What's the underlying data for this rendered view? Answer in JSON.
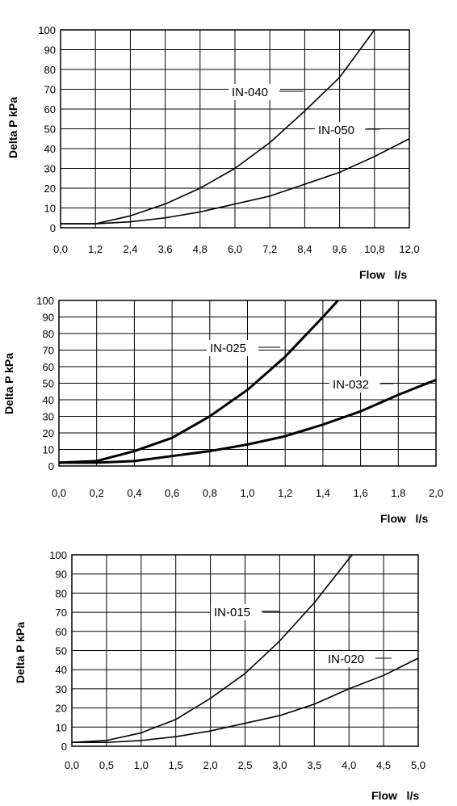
{
  "chart_data": [
    {
      "type": "line",
      "xlabel": "Flow   l/s",
      "ylabel": "Delta P  kPa",
      "xlim": [
        0,
        12
      ],
      "ylim": [
        0,
        100
      ],
      "x_ticks": [
        "0,0",
        "1,2",
        "2,4",
        "3,6",
        "4,8",
        "6,0",
        "7,2",
        "8,4",
        "9,6",
        "10,8",
        "12,0"
      ],
      "y_ticks": [
        "0",
        "10",
        "20",
        "30",
        "40",
        "50",
        "60",
        "70",
        "80",
        "90",
        "100"
      ],
      "grid": true,
      "series": [
        {
          "name": "IN-040",
          "x": [
            0,
            1.2,
            2.4,
            3.6,
            4.8,
            6.0,
            7.2,
            8.4,
            9.6,
            10.8
          ],
          "y": [
            2,
            2,
            6,
            12,
            20,
            30,
            43,
            59,
            76,
            100
          ]
        },
        {
          "name": "IN-050",
          "x": [
            0,
            1.2,
            2.4,
            3.6,
            4.8,
            6.0,
            7.2,
            8.4,
            9.6,
            10.8,
            12.0
          ],
          "y": [
            2,
            2,
            3,
            5,
            8,
            12,
            16,
            22,
            28,
            36,
            45
          ]
        }
      ]
    },
    {
      "type": "line",
      "xlabel": "Flow   l/s",
      "ylabel": "Delta P  kPa",
      "xlim": [
        0,
        2
      ],
      "ylim": [
        0,
        100
      ],
      "x_ticks": [
        "0,0",
        "0,2",
        "0,4",
        "0,6",
        "0,8",
        "1,0",
        "1,2",
        "1,4",
        "1,6",
        "1,8",
        "2,0"
      ],
      "y_ticks": [
        "0",
        "10",
        "20",
        "30",
        "40",
        "50",
        "60",
        "70",
        "80",
        "90",
        "100"
      ],
      "grid": true,
      "series": [
        {
          "name": "IN-025",
          "x": [
            0,
            0.2,
            0.4,
            0.6,
            0.8,
            1.0,
            1.2,
            1.4,
            1.48
          ],
          "y": [
            2,
            3,
            9,
            17,
            30,
            46,
            66,
            90,
            100
          ]
        },
        {
          "name": "IN-032",
          "x": [
            0,
            0.2,
            0.4,
            0.6,
            0.8,
            1.0,
            1.2,
            1.4,
            1.6,
            1.8,
            2.0
          ],
          "y": [
            2,
            2,
            3,
            6,
            9,
            13,
            18,
            25,
            33,
            43,
            52
          ]
        }
      ]
    },
    {
      "type": "line",
      "xlabel": "Flow   l/s",
      "ylabel": "Delta P  kPa",
      "xlim": [
        0,
        5
      ],
      "ylim": [
        0,
        100
      ],
      "x_ticks": [
        "0,0",
        "0,5",
        "1,0",
        "1,5",
        "2,0",
        "2,5",
        "3,0",
        "3,5",
        "4,0",
        "4,5",
        "5,0"
      ],
      "y_ticks": [
        "0",
        "10",
        "20",
        "30",
        "40",
        "50",
        "60",
        "70",
        "80",
        "90",
        "100"
      ],
      "grid": true,
      "series": [
        {
          "name": "IN-015",
          "x": [
            0,
            0.5,
            1.0,
            1.5,
            2.0,
            2.5,
            3.0,
            3.5,
            4.0,
            4.05
          ],
          "y": [
            2,
            3,
            7,
            14,
            25,
            38,
            55,
            75,
            98,
            100
          ]
        },
        {
          "name": "IN-020",
          "x": [
            0,
            0.5,
            1.0,
            1.5,
            2.0,
            2.5,
            3.0,
            3.5,
            4.0,
            4.5,
            5.0
          ],
          "y": [
            2,
            2,
            3,
            5,
            8,
            12,
            16,
            22,
            30,
            37,
            46
          ]
        }
      ]
    }
  ]
}
